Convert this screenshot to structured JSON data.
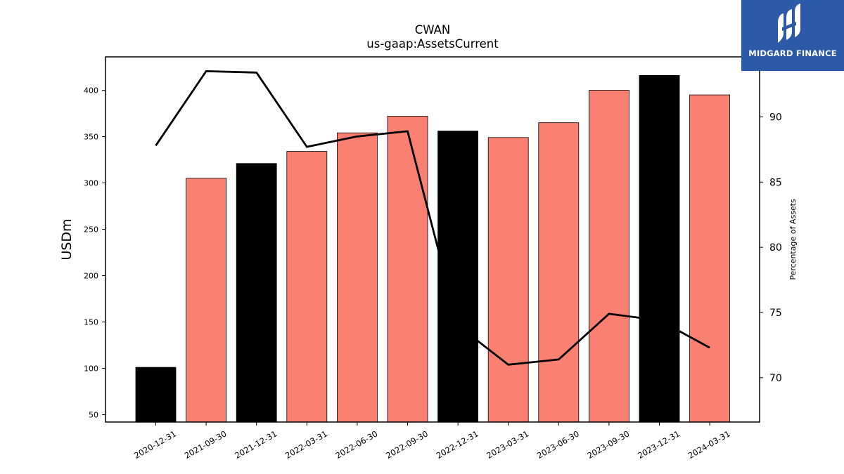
{
  "chart_data": {
    "type": "bar",
    "title": "CWAN",
    "subtitle": "us-gaap:AssetsCurrent",
    "ylabel": "USDm",
    "y2label": "Percentage of Assets",
    "categories": [
      "2020-12-31",
      "2021-09-30",
      "2021-12-31",
      "2022-03-31",
      "2022-06-30",
      "2022-09-30",
      "2022-12-31",
      "2023-03-31",
      "2023-06-30",
      "2023-09-30",
      "2023-12-31",
      "2024-03-31"
    ],
    "values": [
      101,
      305,
      321,
      334,
      354,
      372,
      356,
      349,
      365,
      400,
      416,
      395
    ],
    "bar_colors": [
      "#000000",
      "#fa8072",
      "#000000",
      "#fa8072",
      "#fa8072",
      "#fa8072",
      "#000000",
      "#fa8072",
      "#fa8072",
      "#fa8072",
      "#000000",
      "#fa8072"
    ],
    "line_series": [
      87.8,
      93.5,
      93.4,
      87.7,
      88.5,
      88.9,
      74.0,
      71.0,
      71.4,
      74.9,
      74.4,
      72.3
    ],
    "ylim": [
      42,
      436
    ],
    "yticks": [
      50,
      100,
      150,
      200,
      250,
      300,
      350,
      400
    ],
    "y2lim": [
      66.6,
      94.6
    ],
    "y2ticks": [
      70,
      75,
      80,
      85,
      90
    ],
    "grid": false
  },
  "logo": {
    "text": "MIDGARD FINANCE"
  }
}
